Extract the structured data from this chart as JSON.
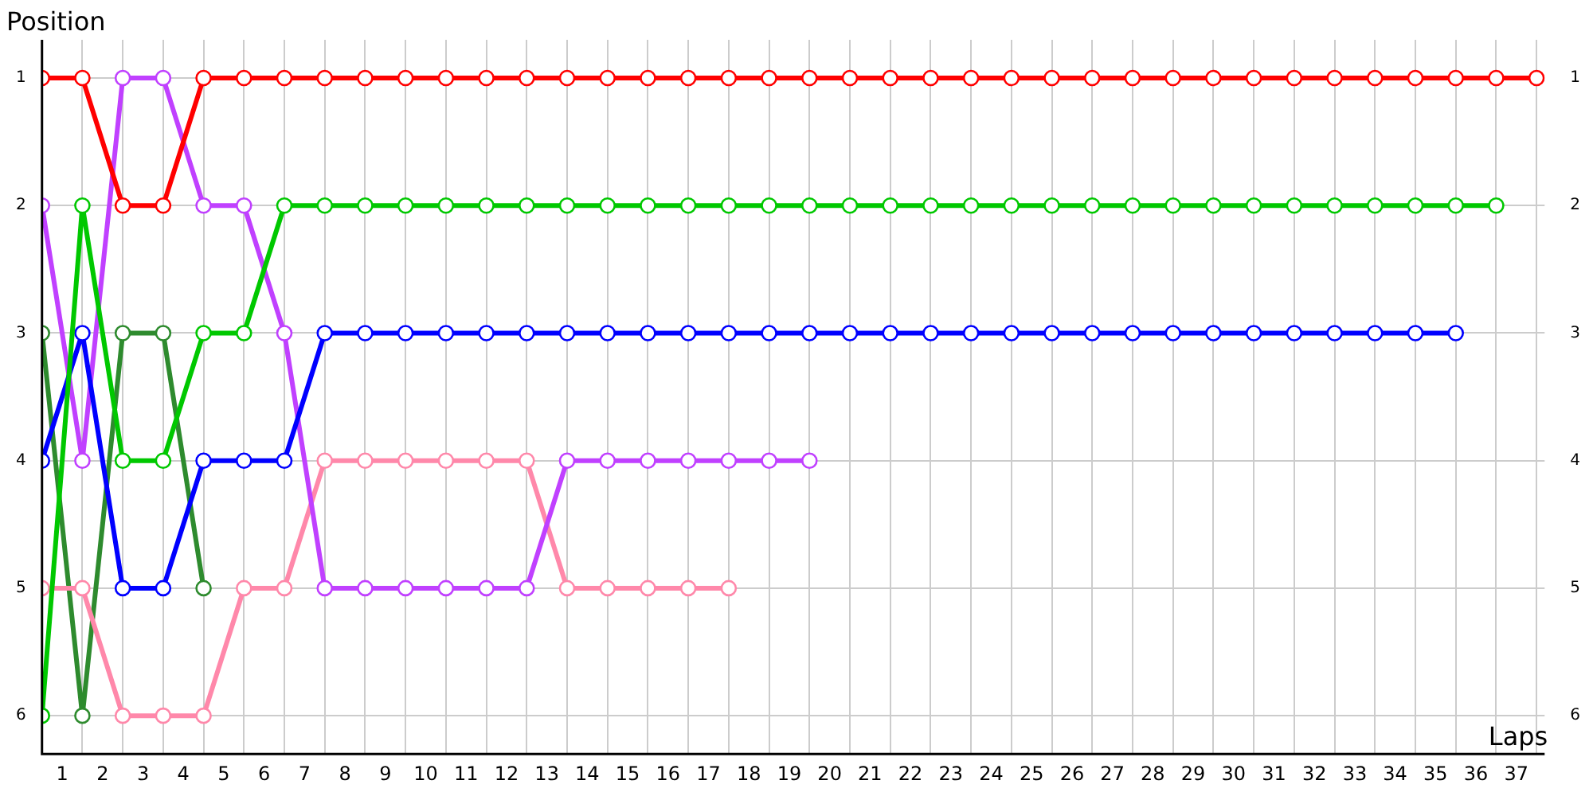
{
  "chart_data": {
    "type": "line",
    "xlabel": "Laps",
    "ylabel": "Position",
    "marker": "circle",
    "grid": true,
    "legend": false,
    "xlim": [
      0,
      37.2
    ],
    "xticks": [
      {
        "value": 0,
        "label": null
      },
      {
        "value": 0.5,
        "label": "1"
      },
      {
        "value": 1,
        "label": null
      },
      {
        "value": 1.5,
        "label": "2"
      },
      {
        "value": 2,
        "label": null
      },
      {
        "value": 2.5,
        "label": "3"
      },
      {
        "value": 3,
        "label": null
      },
      {
        "value": 3.5,
        "label": "4"
      },
      {
        "value": 4,
        "label": null
      },
      {
        "value": 4.5,
        "label": "5"
      },
      {
        "value": 5,
        "label": null
      },
      {
        "value": 5.5,
        "label": "6"
      },
      {
        "value": 6,
        "label": null
      },
      {
        "value": 6.5,
        "label": "7"
      },
      {
        "value": 7,
        "label": null
      },
      {
        "value": 7.5,
        "label": "8"
      },
      {
        "value": 8,
        "label": null
      },
      {
        "value": 8.5,
        "label": "9"
      },
      {
        "value": 9,
        "label": null
      },
      {
        "value": 9.5,
        "label": "10"
      },
      {
        "value": 10,
        "label": null
      },
      {
        "value": 10.5,
        "label": "11"
      },
      {
        "value": 11,
        "label": null
      },
      {
        "value": 11.5,
        "label": "12"
      },
      {
        "value": 12,
        "label": null
      },
      {
        "value": 12.5,
        "label": "13"
      },
      {
        "value": 13,
        "label": null
      },
      {
        "value": 13.5,
        "label": "14"
      },
      {
        "value": 14,
        "label": null
      },
      {
        "value": 14.5,
        "label": "15"
      },
      {
        "value": 15,
        "label": null
      },
      {
        "value": 15.5,
        "label": "16"
      },
      {
        "value": 16,
        "label": null
      },
      {
        "value": 16.5,
        "label": "17"
      },
      {
        "value": 17,
        "label": null
      },
      {
        "value": 17.5,
        "label": "18"
      },
      {
        "value": 18,
        "label": null
      },
      {
        "value": 18.5,
        "label": "19"
      },
      {
        "value": 19,
        "label": null
      },
      {
        "value": 19.5,
        "label": "20"
      },
      {
        "value": 20,
        "label": null
      },
      {
        "value": 20.5,
        "label": "21"
      },
      {
        "value": 21,
        "label": null
      },
      {
        "value": 21.5,
        "label": "22"
      },
      {
        "value": 22,
        "label": null
      },
      {
        "value": 22.5,
        "label": "23"
      },
      {
        "value": 23,
        "label": null
      },
      {
        "value": 23.5,
        "label": "24"
      },
      {
        "value": 24,
        "label": null
      },
      {
        "value": 24.5,
        "label": "25"
      },
      {
        "value": 25,
        "label": null
      },
      {
        "value": 25.5,
        "label": "26"
      },
      {
        "value": 26,
        "label": null
      },
      {
        "value": 26.5,
        "label": "27"
      },
      {
        "value": 27,
        "label": null
      },
      {
        "value": 27.5,
        "label": "28"
      },
      {
        "value": 28,
        "label": null
      },
      {
        "value": 28.5,
        "label": "29"
      },
      {
        "value": 29,
        "label": null
      },
      {
        "value": 29.5,
        "label": "30"
      },
      {
        "value": 30,
        "label": null
      },
      {
        "value": 30.5,
        "label": "31"
      },
      {
        "value": 31,
        "label": null
      },
      {
        "value": 31.5,
        "label": "32"
      },
      {
        "value": 32,
        "label": null
      },
      {
        "value": 32.5,
        "label": "33"
      },
      {
        "value": 33,
        "label": null
      },
      {
        "value": 33.5,
        "label": "34"
      },
      {
        "value": 34,
        "label": null
      },
      {
        "value": 34.5,
        "label": "35"
      },
      {
        "value": 35,
        "label": null
      },
      {
        "value": 35.5,
        "label": "36"
      },
      {
        "value": 36,
        "label": null
      },
      {
        "value": 36.5,
        "label": "37"
      },
      {
        "value": 37,
        "label": null
      }
    ],
    "ylim": [
      6.3,
      0.7
    ],
    "yticks": [
      1,
      2,
      3,
      4,
      5,
      6
    ],
    "y2lim": [
      6.3,
      0.7
    ],
    "y2ticks": [
      1,
      2,
      3,
      4,
      5,
      6
    ],
    "series": [
      {
        "color": "#ff0000",
        "x": [
          0,
          1,
          2,
          3,
          4,
          5,
          6,
          7,
          8,
          9,
          10,
          11,
          12,
          13,
          14,
          15,
          16,
          17,
          18,
          19,
          20,
          21,
          22,
          23,
          24,
          25,
          26,
          27,
          28,
          29,
          30,
          31,
          32,
          33,
          34,
          35,
          36,
          37
        ],
        "values": [
          1,
          1,
          2,
          2,
          1,
          1,
          1,
          1,
          1,
          1,
          1,
          1,
          1,
          1,
          1,
          1,
          1,
          1,
          1,
          1,
          1,
          1,
          1,
          1,
          1,
          1,
          1,
          1,
          1,
          1,
          1,
          1,
          1,
          1,
          1,
          1,
          1,
          1
        ]
      },
      {
        "color": "#00c800",
        "x": [
          0,
          1,
          2,
          3,
          4,
          5,
          6,
          7,
          8,
          9,
          10,
          11,
          12,
          13,
          14,
          15,
          16,
          17,
          18,
          19,
          20,
          21,
          22,
          23,
          24,
          25,
          26,
          27,
          28,
          29,
          30,
          31,
          32,
          33,
          34,
          35,
          36
        ],
        "values": [
          6,
          2,
          4,
          4,
          3,
          3,
          2,
          2,
          2,
          2,
          2,
          2,
          2,
          2,
          2,
          2,
          2,
          2,
          2,
          2,
          2,
          2,
          2,
          2,
          2,
          2,
          2,
          2,
          2,
          2,
          2,
          2,
          2,
          2,
          2,
          2,
          2
        ]
      },
      {
        "color": "#0000ff",
        "x": [
          0,
          1,
          2,
          3,
          4,
          5,
          6,
          7,
          8,
          9,
          10,
          11,
          12,
          13,
          14,
          15,
          16,
          17,
          18,
          19,
          20,
          21,
          22,
          23,
          24,
          25,
          26,
          27,
          28,
          29,
          30,
          31,
          32,
          33,
          34,
          35
        ],
        "values": [
          4,
          3,
          5,
          5,
          4,
          4,
          4,
          3,
          3,
          3,
          3,
          3,
          3,
          3,
          3,
          3,
          3,
          3,
          3,
          3,
          3,
          3,
          3,
          3,
          3,
          3,
          3,
          3,
          3,
          3,
          3,
          3,
          3,
          3,
          3,
          3
        ]
      },
      {
        "color": "#c040ff",
        "x": [
          0,
          1,
          2,
          3,
          4,
          5,
          6,
          7,
          8,
          9,
          10,
          11,
          12,
          13,
          14,
          15,
          16,
          17,
          18,
          19
        ],
        "values": [
          2,
          4,
          1,
          1,
          2,
          2,
          3,
          5,
          5,
          5,
          5,
          5,
          5,
          4,
          4,
          4,
          4,
          4,
          4,
          4
        ]
      },
      {
        "color": "#ff88aa",
        "x": [
          0,
          1,
          2,
          3,
          4,
          5,
          6,
          7,
          8,
          9,
          10,
          11,
          12,
          13,
          14,
          15,
          16,
          17
        ],
        "values": [
          5,
          5,
          6,
          6,
          6,
          5,
          5,
          4,
          4,
          4,
          4,
          4,
          4,
          5,
          5,
          5,
          5,
          5
        ]
      },
      {
        "color": "#2e8b2e",
        "x": [
          0,
          1,
          2,
          3,
          4
        ],
        "values": [
          3,
          6,
          3,
          3,
          5
        ]
      }
    ]
  }
}
